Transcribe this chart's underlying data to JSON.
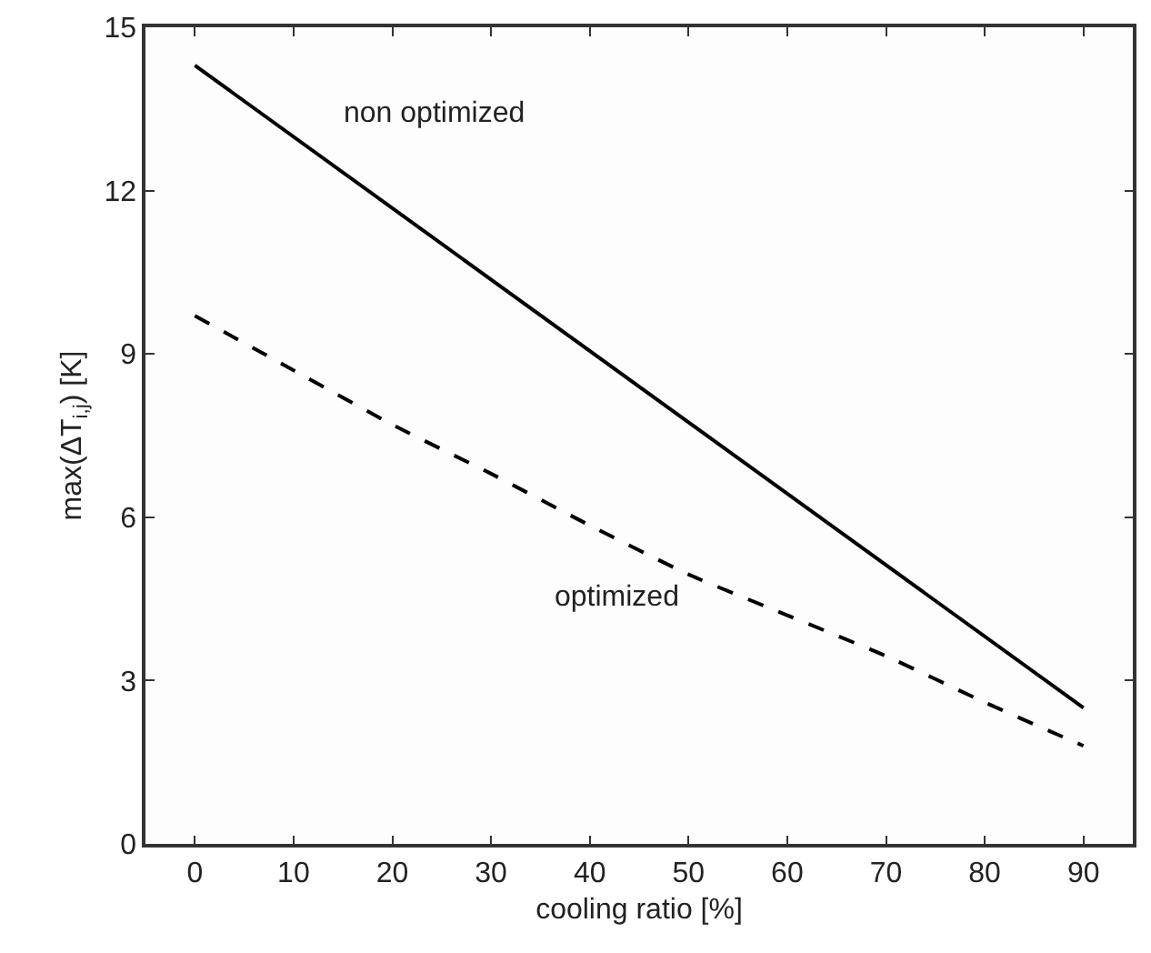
{
  "chart_data": {
    "type": "line",
    "xlabel": "cooling ratio [%]",
    "ylabel": "max(ΔT$_{i,j}$) [K]",
    "x": [
      0,
      10,
      20,
      30,
      40,
      50,
      60,
      70,
      80,
      90
    ],
    "series": [
      {
        "name": "non optimized",
        "color": "#000000",
        "line_style": "solid",
        "x": [
          0,
          90
        ],
        "values": [
          14.3,
          2.5
        ]
      },
      {
        "name": "optimized",
        "color": "#000000",
        "line_style": "dashed",
        "values": [
          9.7,
          8.7,
          7.7,
          6.8,
          5.85,
          4.95,
          4.2,
          3.45,
          2.6,
          1.8
        ]
      }
    ],
    "xlim": [
      -5,
      95
    ],
    "ylim": [
      0,
      15
    ],
    "xticks": [
      0,
      10,
      20,
      30,
      40,
      50,
      60,
      70,
      80,
      90
    ],
    "yticks": [
      0,
      3,
      6,
      9,
      12,
      15
    ],
    "legend": false,
    "marker": "none"
  }
}
